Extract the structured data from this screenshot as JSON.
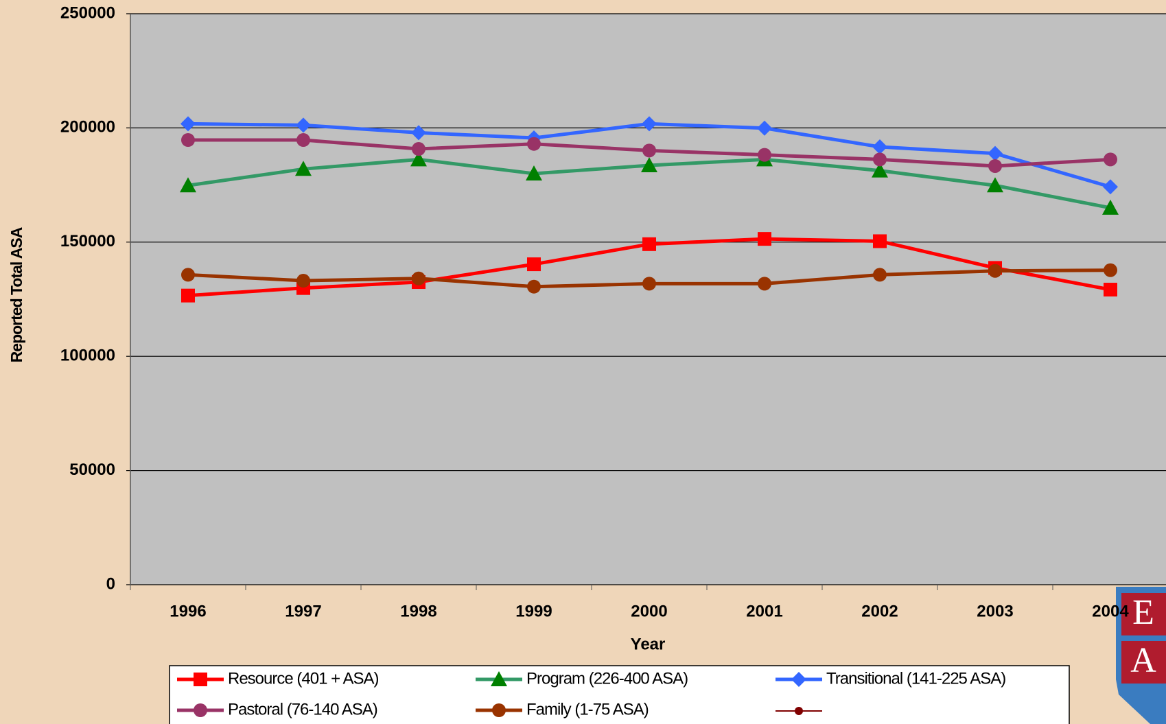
{
  "chart_data": {
    "type": "line",
    "x_label": "Year",
    "y_label": "Reported Total ASA",
    "categories": [
      "1996",
      "1997",
      "1998",
      "1999",
      "2000",
      "2001",
      "2002",
      "2003",
      "2004"
    ],
    "ylim": [
      0,
      250000
    ],
    "yticks": [
      0,
      50000,
      100000,
      150000,
      200000,
      250000
    ],
    "grid": true,
    "series": [
      {
        "name": "Resource (401 + ASA)",
        "color": "#ff0000",
        "marker": "square",
        "values": [
          126600,
          129900,
          132500,
          140300,
          149100,
          151400,
          150400,
          138700,
          129200
        ]
      },
      {
        "name": "Program (226-400 ASA)",
        "color": "#339966",
        "marker_color": "#008000",
        "marker": "triangle",
        "values": [
          174800,
          182000,
          186200,
          180000,
          183600,
          186200,
          181300,
          174800,
          165000
        ]
      },
      {
        "name": "Transitional (141-225 ASA)",
        "color": "#3366ff",
        "marker": "diamond",
        "values": [
          201800,
          201200,
          197900,
          195600,
          201800,
          199900,
          191700,
          188800,
          174200
        ]
      },
      {
        "name": "Pastoral (76-140 ASA)",
        "color": "#993366",
        "marker": "circle",
        "values": [
          194700,
          194700,
          190800,
          193000,
          190100,
          188200,
          186200,
          183300,
          186200
        ]
      },
      {
        "name": "Family (1-75 ASA)",
        "color": "#993300",
        "marker": "circle",
        "values": [
          135700,
          133100,
          134100,
          130500,
          131800,
          131800,
          135700,
          137400,
          137700
        ]
      }
    ]
  },
  "logo": {
    "letters": [
      "E",
      "A"
    ]
  }
}
